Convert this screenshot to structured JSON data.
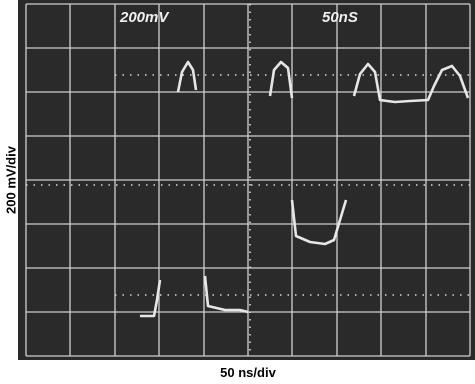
{
  "screen": {
    "volts_label": "200mV",
    "time_label": "50nS"
  },
  "axes": {
    "y_label": "200 mV/div",
    "x_label": "50 ns/div"
  }
}
